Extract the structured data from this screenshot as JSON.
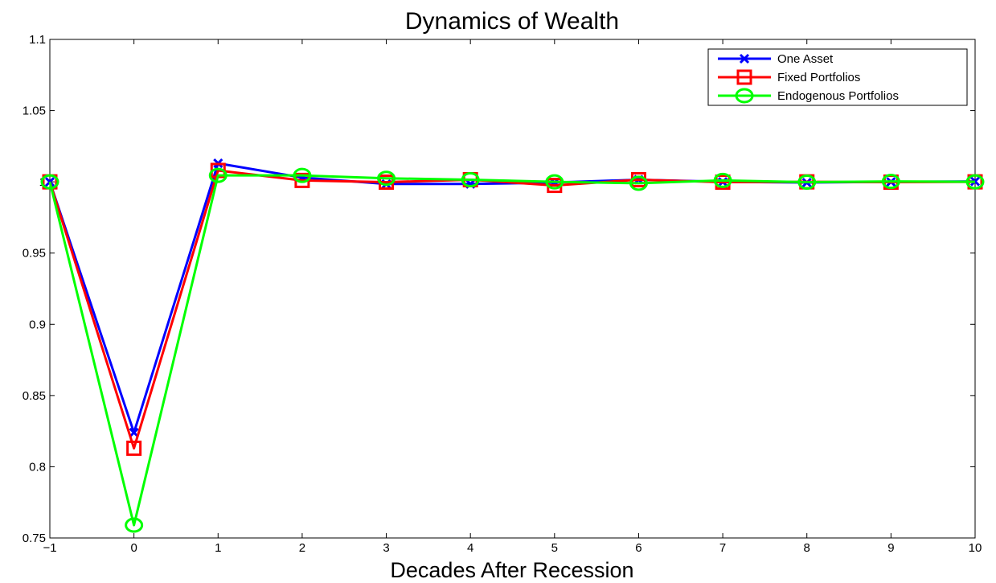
{
  "chart_data": {
    "type": "line",
    "title": "Dynamics of Wealth",
    "xlabel": "Decades After Recession",
    "ylabel": "",
    "xlim": [
      -1,
      10
    ],
    "ylim": [
      0.75,
      1.1
    ],
    "x": [
      -1,
      0,
      1,
      2,
      3,
      4,
      5,
      6,
      7,
      8,
      9,
      10
    ],
    "x_ticks": [
      "−1",
      "0",
      "1",
      "2",
      "3",
      "4",
      "5",
      "6",
      "7",
      "8",
      "9",
      "10"
    ],
    "y_ticks": [
      "0.75",
      "0.8",
      "0.85",
      "0.9",
      "0.95",
      "1",
      "1.05",
      "1.1"
    ],
    "y_tick_values": [
      0.75,
      0.8,
      0.85,
      0.9,
      0.95,
      1.0,
      1.05,
      1.1
    ],
    "grid": false,
    "legend_position": "top-right",
    "series": [
      {
        "name": "One Asset",
        "color": "#0000ff",
        "marker": "x",
        "values": [
          1.0,
          0.824,
          1.013,
          1.003,
          0.9985,
          0.9985,
          0.9995,
          1.0015,
          1.0,
          0.9995,
          1.0,
          1.0003
        ]
      },
      {
        "name": "Fixed Portfolios",
        "color": "#ff0000",
        "marker": "square",
        "values": [
          1.0,
          0.813,
          1.008,
          1.001,
          0.9998,
          1.0015,
          0.9975,
          1.0015,
          0.9998,
          1.0,
          0.9998,
          1.0
        ]
      },
      {
        "name": "Endogenous Portfolios",
        "color": "#00ff00",
        "marker": "circle",
        "values": [
          1.0,
          0.759,
          1.0045,
          1.0045,
          1.0025,
          1.0015,
          1.0,
          0.999,
          1.001,
          0.9998,
          1.0003,
          1.0
        ]
      }
    ]
  }
}
